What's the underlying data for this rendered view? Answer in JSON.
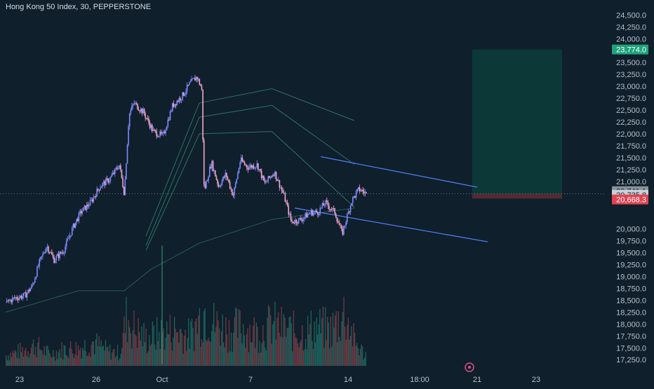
{
  "header": {
    "title": "Hong Kong 50 Index, 30, PEPPERSTONE"
  },
  "colors": {
    "background": "#0f1f2b",
    "candle_up": "#7b8cff",
    "candle_down": "#f0a6c8",
    "volume_up": "#1f6b63",
    "volume_down": "#7a3d47",
    "channel": "#4f7cf0",
    "ma": "#3a8f7c",
    "target_zone": "#0c3b3a",
    "target_label": "#1ea37b",
    "price_label": "#5f6b77",
    "stop_label": "#e04452"
  },
  "chart_data": {
    "type": "candlestick",
    "title": "Hong Kong 50 Index, 30, PEPPERSTONE",
    "symbol": "Hong Kong 50 Index",
    "interval": "30",
    "source": "PEPPERSTONE",
    "x_tick_labels": [
      "23",
      "26",
      "Oct",
      "7",
      "14",
      "18:00",
      "21",
      "23"
    ],
    "y_tick_labels": [
      "24,500.0",
      "24,250.0",
      "24,000.0",
      "23,500.0",
      "23,250.0",
      "23,000.0",
      "22,750.0",
      "22,500.0",
      "22,250.0",
      "22,000.0",
      "21,750.0",
      "21,500.0",
      "21,250.0",
      "21,000.0",
      "20,000.0",
      "19,750.0",
      "19,500.0",
      "19,250.0",
      "19,000.0",
      "18,750.0",
      "18,500.0",
      "18,250.0",
      "18,000.0",
      "17,750.0",
      "17,500.0",
      "17,250.0"
    ],
    "ylim": [
      17150,
      24550
    ],
    "grid": false,
    "price_labels": {
      "target": "23,774.0",
      "last": "20,741.1",
      "current": "20,735.8",
      "stop": "20,668.3"
    },
    "channel_upper": [
      [
        0.0,
        21520
      ],
      [
        1.0,
        20880
      ]
    ],
    "channel_lower": [
      [
        0.0,
        20440
      ],
      [
        1.0,
        19730
      ]
    ],
    "ma_lines": [
      [
        [
          0.29,
          19850
        ],
        [
          0.4,
          22650
        ],
        [
          0.55,
          22950
        ],
        [
          0.72,
          22280
        ]
      ],
      [
        [
          0.29,
          19650
        ],
        [
          0.4,
          22350
        ],
        [
          0.55,
          22600
        ],
        [
          0.72,
          21360
        ]
      ],
      [
        [
          0.29,
          19550
        ],
        [
          0.4,
          22000
        ],
        [
          0.55,
          22050
        ],
        [
          0.72,
          20460
        ]
      ]
    ],
    "price_path": [
      [
        0.0,
        18450
      ],
      [
        0.02,
        18550
      ],
      [
        0.04,
        18600
      ],
      [
        0.055,
        18800
      ],
      [
        0.07,
        19300
      ],
      [
        0.085,
        19650
      ],
      [
        0.1,
        19350
      ],
      [
        0.12,
        19550
      ],
      [
        0.14,
        20050
      ],
      [
        0.155,
        20350
      ],
      [
        0.175,
        20550
      ],
      [
        0.195,
        20900
      ],
      [
        0.215,
        21050
      ],
      [
        0.235,
        21350
      ],
      [
        0.245,
        20750
      ],
      [
        0.255,
        22400
      ],
      [
        0.265,
        22650
      ],
      [
        0.285,
        22450
      ],
      [
        0.305,
        22050
      ],
      [
        0.325,
        21950
      ],
      [
        0.345,
        22600
      ],
      [
        0.365,
        22800
      ],
      [
        0.38,
        23050
      ],
      [
        0.395,
        23200
      ],
      [
        0.405,
        22950
      ],
      [
        0.41,
        20800
      ],
      [
        0.425,
        21400
      ],
      [
        0.44,
        20900
      ],
      [
        0.455,
        21150
      ],
      [
        0.47,
        20700
      ],
      [
        0.485,
        21450
      ],
      [
        0.5,
        21300
      ],
      [
        0.52,
        21350
      ],
      [
        0.535,
        20950
      ],
      [
        0.555,
        21200
      ],
      [
        0.575,
        20700
      ],
      [
        0.59,
        20150
      ],
      [
        0.61,
        20200
      ],
      [
        0.63,
        20350
      ],
      [
        0.645,
        20350
      ],
      [
        0.66,
        20550
      ],
      [
        0.68,
        20350
      ],
      [
        0.695,
        19900
      ],
      [
        0.715,
        20600
      ],
      [
        0.73,
        20840
      ],
      [
        0.745,
        20740
      ]
    ],
    "volume_profile": [
      [
        0.0,
        0.18
      ],
      [
        0.03,
        0.25
      ],
      [
        0.06,
        0.35
      ],
      [
        0.09,
        0.2
      ],
      [
        0.12,
        0.28
      ],
      [
        0.15,
        0.3
      ],
      [
        0.18,
        0.4
      ],
      [
        0.21,
        0.25
      ],
      [
        0.235,
        0.22
      ],
      [
        0.25,
        0.85
      ],
      [
        0.26,
        0.65
      ],
      [
        0.29,
        0.45
      ],
      [
        0.32,
        0.55
      ],
      [
        0.35,
        0.6
      ],
      [
        0.38,
        0.5
      ],
      [
        0.41,
        0.95
      ],
      [
        0.43,
        0.7
      ],
      [
        0.46,
        0.6
      ],
      [
        0.49,
        0.65
      ],
      [
        0.52,
        0.55
      ],
      [
        0.55,
        0.7
      ],
      [
        0.58,
        0.6
      ],
      [
        0.61,
        0.55
      ],
      [
        0.64,
        0.65
      ],
      [
        0.67,
        0.6
      ],
      [
        0.7,
        0.9
      ],
      [
        0.72,
        0.4
      ],
      [
        0.74,
        0.2
      ]
    ]
  }
}
